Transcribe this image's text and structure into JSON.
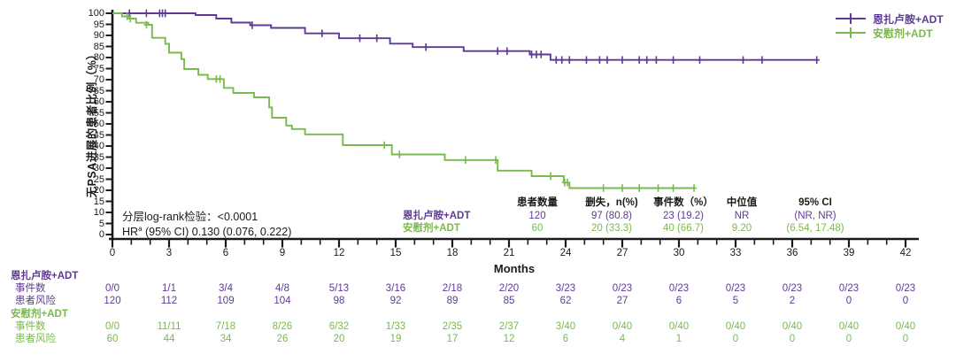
{
  "colors": {
    "enza": "#5F3A94",
    "placebo": "#7BB94E",
    "axis": "#1a1a1a"
  },
  "legend": {
    "items": [
      {
        "label": "恩扎卢胺+ADT",
        "color_key": "enza"
      },
      {
        "label": "安慰剂+ADT",
        "color_key": "placebo"
      }
    ]
  },
  "y_axis": {
    "title": "无PSA进展的患者比例（%）",
    "ticks": [
      100,
      95,
      90,
      85,
      80,
      75,
      70,
      65,
      60,
      55,
      50,
      45,
      40,
      35,
      30,
      25,
      20,
      15,
      10,
      5,
      0
    ]
  },
  "x_axis": {
    "title": "Months",
    "ticks": [
      0,
      3,
      6,
      9,
      12,
      15,
      18,
      21,
      24,
      27,
      30,
      33,
      36,
      39,
      42
    ],
    "minor_step_months": 1,
    "minor_max": 42
  },
  "stats": {
    "line1": "分层log-rank检验：<0.0001",
    "hr_prefix": "HR",
    "hr_sup": "a",
    "hr_rest": " (95% CI) 0.130 (0.076, 0.222)"
  },
  "summary_table": {
    "headers": [
      "患者数量",
      "删失，n(%)",
      "事件数（%）",
      "中位值",
      "95% CI"
    ],
    "rows": [
      {
        "label": "恩扎卢胺+ADT",
        "color_key": "enza",
        "values": [
          "120",
          "97 (80.8)",
          "23 (19.2)",
          "NR",
          "(NR, NR)"
        ]
      },
      {
        "label": "安慰剂+ADT",
        "color_key": "placebo",
        "values": [
          "60",
          "20 (33.3)",
          "40 (66.7)",
          "9.20",
          "(6.54, 17.48)"
        ]
      }
    ]
  },
  "risk_table": {
    "events_label": "事件数",
    "at_risk_label": "患者风险",
    "groups": [
      {
        "label": "恩扎卢胺+ADT",
        "color_key": "enza",
        "events": [
          "0/0",
          "1/1",
          "3/4",
          "4/8",
          "5/13",
          "3/16",
          "2/18",
          "2/20",
          "3/23",
          "0/23",
          "0/23",
          "0/23",
          "0/23",
          "0/23",
          "0/23"
        ],
        "at_risk": [
          "120",
          "112",
          "109",
          "104",
          "98",
          "92",
          "89",
          "85",
          "62",
          "27",
          "6",
          "5",
          "2",
          "0",
          "0"
        ]
      },
      {
        "label": "安慰剂+ADT",
        "color_key": "placebo",
        "events": [
          "0/0",
          "11/11",
          "7/18",
          "8/26",
          "6/32",
          "1/33",
          "2/35",
          "2/37",
          "3/40",
          "0/40",
          "0/40",
          "0/40",
          "0/40",
          "0/40",
          "0/40"
        ],
        "at_risk": [
          "60",
          "44",
          "34",
          "26",
          "20",
          "19",
          "17",
          "12",
          "6",
          "4",
          "1",
          "0",
          "0",
          "0",
          "0"
        ]
      }
    ]
  },
  "chart_data": {
    "type": "line",
    "subtype": "kaplan-meier-step",
    "title": "",
    "xlabel": "Months",
    "ylabel": "无PSA进展的患者比例（%）",
    "xlim": [
      0,
      42.6
    ],
    "ylim": [
      0,
      100
    ],
    "grid": false,
    "legend_position": "top-right",
    "series": [
      {
        "name": "恩扎卢胺+ADT",
        "color": "#5F3A94",
        "n": 120,
        "steps": [
          [
            0,
            100
          ],
          [
            4.4,
            99.2
          ],
          [
            5.5,
            97.6
          ],
          [
            6.3,
            95.8
          ],
          [
            7.3,
            94.6
          ],
          [
            8.4,
            93.4
          ],
          [
            10.2,
            90.9
          ],
          [
            12.0,
            88.7
          ],
          [
            14.7,
            86.3
          ],
          [
            15.9,
            84.7
          ],
          [
            18.6,
            82.9
          ],
          [
            22.1,
            81.4
          ],
          [
            23.2,
            78.9
          ],
          [
            37.3,
            78.9
          ]
        ],
        "censors": [
          [
            0.9,
            100
          ],
          [
            1.8,
            100
          ],
          [
            2.5,
            100
          ],
          [
            2.65,
            100
          ],
          [
            2.8,
            100
          ],
          [
            7.4,
            94.6
          ],
          [
            11.1,
            90.9
          ],
          [
            13.1,
            88.7
          ],
          [
            14.0,
            88.7
          ],
          [
            16.6,
            84.7
          ],
          [
            20.4,
            82.9
          ],
          [
            20.9,
            82.9
          ],
          [
            22.2,
            81.4
          ],
          [
            22.45,
            81.4
          ],
          [
            22.7,
            81.4
          ],
          [
            23.5,
            78.9
          ],
          [
            23.8,
            78.9
          ],
          [
            24.2,
            78.9
          ],
          [
            25.1,
            78.9
          ],
          [
            25.8,
            78.9
          ],
          [
            26.2,
            78.9
          ],
          [
            27.0,
            78.9
          ],
          [
            27.9,
            78.9
          ],
          [
            28.3,
            78.9
          ],
          [
            28.8,
            78.9
          ],
          [
            29.7,
            78.9
          ],
          [
            31.1,
            78.9
          ],
          [
            33.4,
            78.9
          ],
          [
            34.4,
            78.9
          ],
          [
            37.3,
            78.9
          ]
        ]
      },
      {
        "name": "安慰剂+ADT",
        "color": "#7BB94E",
        "n": 60,
        "steps": [
          [
            0,
            100
          ],
          [
            0.5,
            98.6
          ],
          [
            0.9,
            97.6
          ],
          [
            1.25,
            95.7
          ],
          [
            1.9,
            94.8
          ],
          [
            2.1,
            88.9
          ],
          [
            2.8,
            86.2
          ],
          [
            3.0,
            82.2
          ],
          [
            3.65,
            79.3
          ],
          [
            3.8,
            74.8
          ],
          [
            4.55,
            72.2
          ],
          [
            5.05,
            70.3
          ],
          [
            5.9,
            66.3
          ],
          [
            6.4,
            64.0
          ],
          [
            7.5,
            62.0
          ],
          [
            8.3,
            57.5
          ],
          [
            8.45,
            52.8
          ],
          [
            9.2,
            49.3
          ],
          [
            9.5,
            47.7
          ],
          [
            10.2,
            45.3
          ],
          [
            12.2,
            40.4
          ],
          [
            14.8,
            36.2
          ],
          [
            17.6,
            33.7
          ],
          [
            20.4,
            28.9
          ],
          [
            22.2,
            26.4
          ],
          [
            23.9,
            23.5
          ],
          [
            24.2,
            21.0
          ],
          [
            30.8,
            21.0
          ]
        ],
        "censors": [
          [
            0.78,
            98.6
          ],
          [
            0.95,
            97.6
          ],
          [
            1.8,
            94.8
          ],
          [
            5.5,
            70.3
          ],
          [
            5.7,
            70.3
          ],
          [
            14.4,
            40.4
          ],
          [
            15.2,
            36.2
          ],
          [
            18.7,
            33.7
          ],
          [
            20.3,
            33.7
          ],
          [
            23.2,
            26.4
          ],
          [
            23.95,
            23.5
          ],
          [
            24.1,
            23.5
          ],
          [
            26.0,
            21.0
          ],
          [
            27.0,
            21.0
          ],
          [
            27.9,
            21.0
          ],
          [
            28.9,
            21.0
          ],
          [
            29.7,
            21.0
          ],
          [
            30.8,
            21.0
          ]
        ]
      }
    ]
  }
}
